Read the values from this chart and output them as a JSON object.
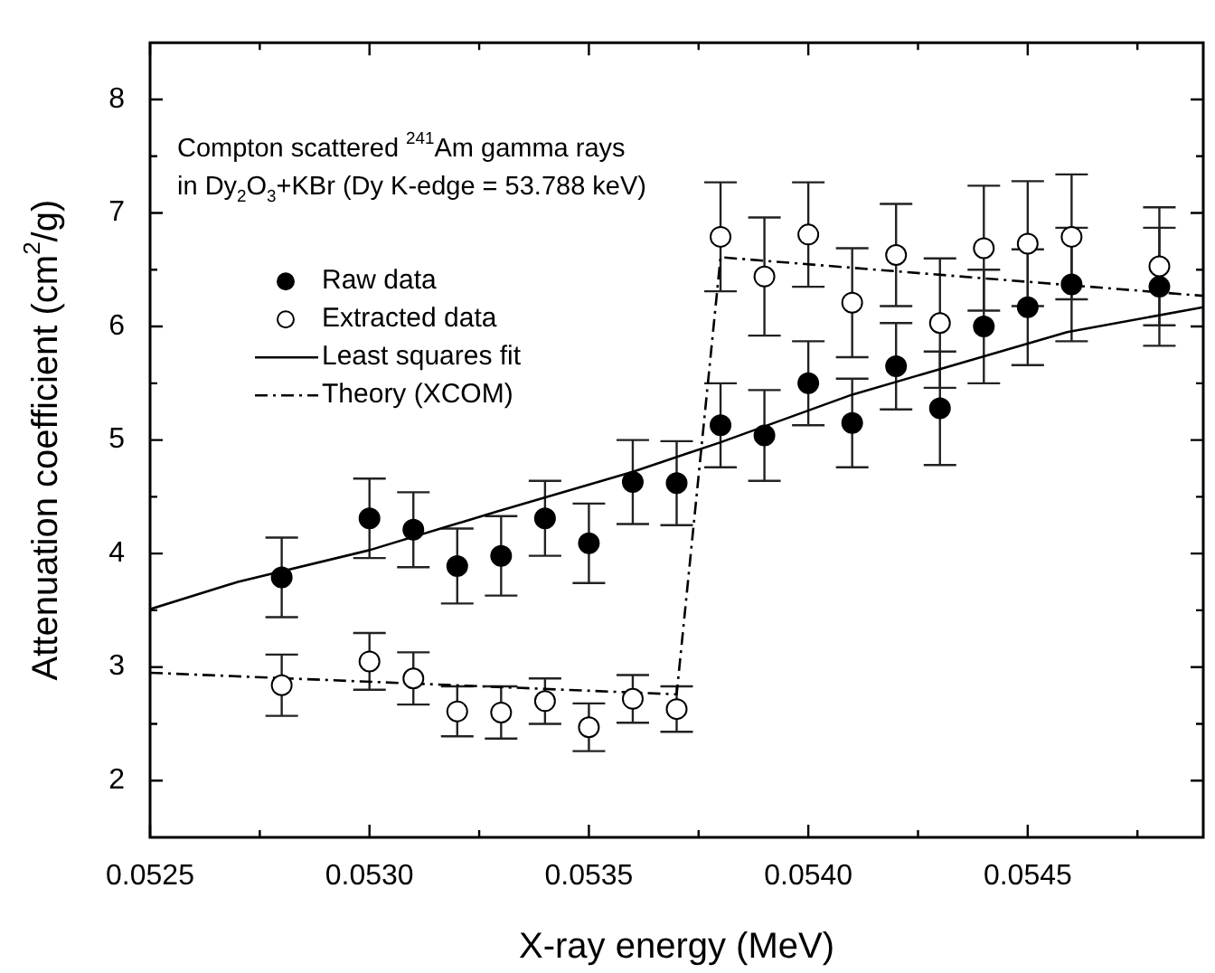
{
  "chart_data": {
    "type": "scatter",
    "xlabel": "X-ray energy (MeV)",
    "ylabel": "Attenuation coefficient (cm$^{2}$/g)",
    "annotations": [
      "Compton scattered $^{241}$Am gamma rays",
      "in Dy$_{2}$O$_{3}$+KBr (Dy K-edge = 53.788 keV)"
    ],
    "xlim": [
      0.0525,
      0.0549
    ],
    "ylim": [
      1.5,
      8.5
    ],
    "xticks": [
      {
        "value": 0.0525,
        "label": "0.0525"
      },
      {
        "value": 0.05275,
        "label": null
      },
      {
        "value": 0.053,
        "label": "0.0530"
      },
      {
        "value": 0.05325,
        "label": null
      },
      {
        "value": 0.0535,
        "label": "0.0535"
      },
      {
        "value": 0.05375,
        "label": null
      },
      {
        "value": 0.054,
        "label": "0.0540"
      },
      {
        "value": 0.05425,
        "label": null
      },
      {
        "value": 0.0545,
        "label": "0.0545"
      },
      {
        "value": 0.05475,
        "label": null
      }
    ],
    "yticks": [
      {
        "value": 2.5,
        "label": null
      },
      2,
      3,
      {
        "value": 3.5,
        "label": null
      },
      4,
      {
        "value": 4.5,
        "label": null
      },
      5,
      {
        "value": 5.5,
        "label": null
      },
      6,
      {
        "value": 6.5,
        "label": null
      },
      7,
      {
        "value": 7.5,
        "label": null
      },
      8
    ],
    "grid": false,
    "legend": "top left",
    "series": [
      {
        "name": "Raw data",
        "type": "scatter",
        "marker": "circle",
        "color": "#000000",
        "x": [
          0.0528,
          0.053,
          0.0531,
          0.0532,
          0.0533,
          0.0534,
          0.0535,
          0.0536,
          0.0537,
          0.0538,
          0.0539,
          0.054,
          0.0541,
          0.0542,
          0.0543,
          0.0544,
          0.0545,
          0.0546,
          0.0548
        ],
        "values": [
          3.79,
          4.31,
          4.21,
          3.89,
          3.98,
          4.31,
          4.09,
          4.63,
          4.62,
          5.13,
          5.04,
          5.5,
          5.15,
          5.65,
          5.28,
          6.0,
          6.17,
          6.37,
          6.35
        ],
        "errors": [
          0.35,
          0.35,
          0.33,
          0.33,
          0.35,
          0.33,
          0.35,
          0.37,
          0.37,
          0.37,
          0.4,
          0.37,
          0.39,
          0.38,
          0.5,
          0.5,
          0.51,
          0.5,
          0.52
        ]
      },
      {
        "name": "Extracted data",
        "type": "scatter",
        "marker": "circle",
        "color": "#ffffff",
        "x": [
          0.0528,
          0.053,
          0.0531,
          0.0532,
          0.0533,
          0.0534,
          0.0535,
          0.0536,
          0.0537,
          0.0538,
          0.0539,
          0.054,
          0.0541,
          0.0542,
          0.0543,
          0.0544,
          0.0545,
          0.0546,
          0.0548
        ],
        "values": [
          2.84,
          3.05,
          2.9,
          2.61,
          2.6,
          2.7,
          2.47,
          2.72,
          2.63,
          6.79,
          6.44,
          6.81,
          6.21,
          6.63,
          6.03,
          6.69,
          6.73,
          6.79,
          6.53
        ],
        "errors": [
          0.27,
          0.25,
          0.23,
          0.22,
          0.23,
          0.2,
          0.21,
          0.21,
          0.2,
          0.48,
          0.52,
          0.46,
          0.48,
          0.45,
          0.57,
          0.55,
          0.55,
          0.55,
          0.52
        ]
      },
      {
        "name": "Least squares fit",
        "type": "line",
        "marker": "none",
        "color": "#000000",
        "line_style": "solid",
        "x": [
          0.0525,
          0.0527,
          0.053,
          0.05329,
          0.0536,
          0.0538,
          0.0541,
          0.05459,
          0.0549
        ],
        "values": [
          3.51,
          3.75,
          4.03,
          4.37,
          4.72,
          4.98,
          5.4,
          5.95,
          6.17
        ]
      },
      {
        "name": "Theory (XCOM)",
        "type": "line",
        "marker": "none",
        "color": "#000000",
        "line_style": "dashed",
        "x": [
          0.0525,
          0.0537,
          0.0538,
          0.0549
        ],
        "values": [
          2.95,
          2.76,
          6.61,
          6.27
        ]
      }
    ]
  }
}
